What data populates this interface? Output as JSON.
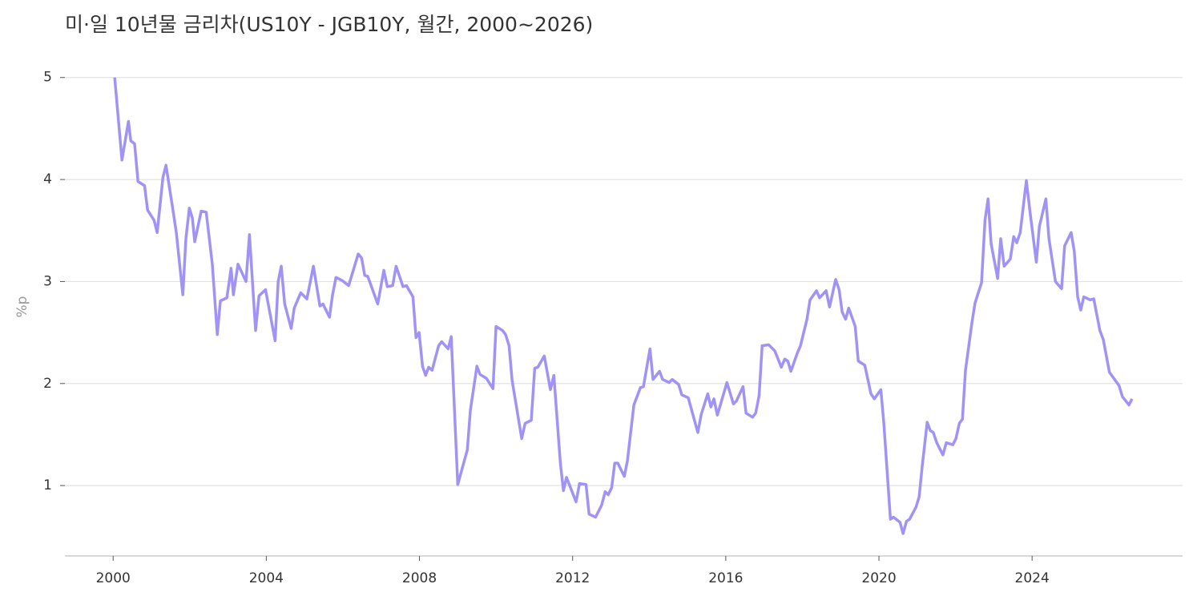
{
  "chart_data": {
    "type": "line",
    "title": "미·일 10년물 금리차(US10Y - JGB10Y, 월간, 2000~2026)",
    "ylabel": "%p",
    "xlim": [
      1998.74,
      2027.93
    ],
    "xticks": [
      2000,
      2004,
      2008,
      2012,
      2016,
      2020,
      2024
    ],
    "ylim": [
      0.31,
      5.21
    ],
    "yticks": [
      1,
      2,
      3,
      4,
      5
    ],
    "grid": true,
    "x": [
      2000.04,
      2000.23,
      2000.4,
      2000.46,
      2000.56,
      2000.65,
      2000.82,
      2000.9,
      2001.07,
      2001.15,
      2001.3,
      2001.38,
      2001.55,
      2001.65,
      2001.82,
      2001.9,
      2001.99,
      2002.07,
      2002.13,
      2002.3,
      2002.43,
      2002.59,
      2002.72,
      2002.8,
      2002.97,
      2003.08,
      2003.14,
      2003.26,
      2003.47,
      2003.56,
      2003.72,
      2003.81,
      2003.98,
      2004.23,
      2004.31,
      2004.39,
      2004.48,
      2004.65,
      2004.73,
      2004.9,
      2005.06,
      2005.23,
      2005.4,
      2005.48,
      2005.65,
      2005.73,
      2005.82,
      2005.98,
      2006.15,
      2006.24,
      2006.4,
      2006.49,
      2006.57,
      2006.65,
      2006.91,
      2007.07,
      2007.16,
      2007.3,
      2007.39,
      2007.57,
      2007.66,
      2007.83,
      2007.91,
      2007.99,
      2008.08,
      2008.16,
      2008.24,
      2008.33,
      2008.5,
      2008.58,
      2008.75,
      2008.83,
      2009.0,
      2009.25,
      2009.33,
      2009.5,
      2009.58,
      2009.75,
      2009.92,
      2010.0,
      2010.17,
      2010.25,
      2010.34,
      2010.42,
      2010.67,
      2010.76,
      2010.92,
      2011.01,
      2011.09,
      2011.26,
      2011.42,
      2011.51,
      2011.68,
      2011.76,
      2011.84,
      2012.09,
      2012.18,
      2012.35,
      2012.43,
      2012.6,
      2012.76,
      2012.85,
      2012.93,
      2013.02,
      2013.1,
      2013.18,
      2013.35,
      2013.43,
      2013.6,
      2013.77,
      2013.85,
      2014.02,
      2014.1,
      2014.27,
      2014.35,
      2014.52,
      2014.6,
      2014.77,
      2014.85,
      2015.02,
      2015.27,
      2015.36,
      2015.53,
      2015.61,
      2015.69,
      2015.78,
      2016.03,
      2016.2,
      2016.28,
      2016.45,
      2016.53,
      2016.7,
      2016.78,
      2016.87,
      2016.95,
      2017.12,
      2017.28,
      2017.45,
      2017.54,
      2017.62,
      2017.7,
      2017.87,
      2017.95,
      2018.12,
      2018.2,
      2018.37,
      2018.45,
      2018.62,
      2018.71,
      2018.87,
      2018.96,
      2019.04,
      2019.13,
      2019.21,
      2019.38,
      2019.46,
      2019.63,
      2019.79,
      2019.88,
      2020.05,
      2020.13,
      2020.3,
      2020.38,
      2020.55,
      2020.63,
      2020.72,
      2020.8,
      2020.97,
      2021.05,
      2021.13,
      2021.26,
      2021.34,
      2021.42,
      2021.51,
      2021.67,
      2021.76,
      2021.93,
      2022.01,
      2022.1,
      2022.18,
      2022.26,
      2022.43,
      2022.51,
      2022.68,
      2022.77,
      2022.85,
      2022.93,
      2023.1,
      2023.18,
      2023.27,
      2023.43,
      2023.52,
      2023.6,
      2023.69,
      2023.85,
      2023.94,
      2024.11,
      2024.19,
      2024.36,
      2024.44,
      2024.61,
      2024.77,
      2024.85,
      2025.02,
      2025.1,
      2025.19,
      2025.27,
      2025.35,
      2025.52,
      2025.61,
      2025.77,
      2025.86,
      2026.02,
      2026.27,
      2026.36,
      2026.53,
      2026.61
    ],
    "series": [
      {
        "color": "#a093f5",
        "values": [
          5.0,
          4.19,
          4.57,
          4.38,
          4.35,
          3.98,
          3.94,
          3.7,
          3.6,
          3.48,
          4.02,
          4.14,
          3.73,
          3.48,
          2.87,
          3.42,
          3.72,
          3.62,
          3.39,
          3.69,
          3.68,
          3.17,
          2.48,
          2.81,
          2.84,
          3.13,
          2.87,
          3.17,
          3.0,
          3.46,
          2.52,
          2.86,
          2.92,
          2.42,
          3.0,
          3.15,
          2.78,
          2.54,
          2.74,
          2.89,
          2.83,
          3.15,
          2.76,
          2.78,
          2.65,
          2.87,
          3.04,
          3.01,
          2.96,
          3.07,
          3.27,
          3.23,
          3.06,
          3.05,
          2.78,
          3.11,
          2.95,
          2.96,
          3.15,
          2.95,
          2.96,
          2.85,
          2.45,
          2.5,
          2.17,
          2.08,
          2.16,
          2.13,
          2.37,
          2.41,
          2.34,
          2.46,
          1.01,
          1.35,
          1.74,
          2.17,
          2.09,
          2.05,
          1.95,
          2.56,
          2.52,
          2.48,
          2.37,
          2.03,
          1.46,
          1.61,
          1.64,
          2.15,
          2.16,
          2.27,
          1.94,
          2.08,
          1.22,
          0.95,
          1.08,
          0.84,
          1.02,
          1.01,
          0.72,
          0.69,
          0.81,
          0.94,
          0.91,
          0.98,
          1.22,
          1.22,
          1.09,
          1.24,
          1.79,
          1.96,
          1.97,
          2.34,
          2.04,
          2.12,
          2.04,
          2.01,
          2.04,
          1.99,
          1.89,
          1.86,
          1.52,
          1.7,
          1.9,
          1.77,
          1.85,
          1.69,
          2.01,
          1.8,
          1.83,
          1.97,
          1.71,
          1.67,
          1.71,
          1.88,
          2.37,
          2.38,
          2.32,
          2.16,
          2.24,
          2.22,
          2.12,
          2.3,
          2.37,
          2.63,
          2.82,
          2.91,
          2.84,
          2.91,
          2.75,
          3.02,
          2.92,
          2.7,
          2.63,
          2.74,
          2.56,
          2.22,
          2.18,
          1.9,
          1.85,
          1.94,
          1.6,
          0.67,
          0.69,
          0.64,
          0.53,
          0.65,
          0.67,
          0.79,
          0.89,
          1.19,
          1.62,
          1.54,
          1.52,
          1.42,
          1.3,
          1.42,
          1.4,
          1.46,
          1.61,
          1.65,
          2.13,
          2.6,
          2.79,
          2.99,
          3.6,
          3.81,
          3.37,
          3.03,
          3.42,
          3.15,
          3.22,
          3.44,
          3.38,
          3.48,
          3.99,
          3.7,
          3.19,
          3.54,
          3.81,
          3.42,
          3.0,
          2.93,
          3.35,
          3.48,
          3.3,
          2.85,
          2.72,
          2.85,
          2.82,
          2.83,
          2.52,
          2.43,
          2.11,
          1.98,
          1.87,
          1.79,
          1.85
        ]
      }
    ]
  }
}
